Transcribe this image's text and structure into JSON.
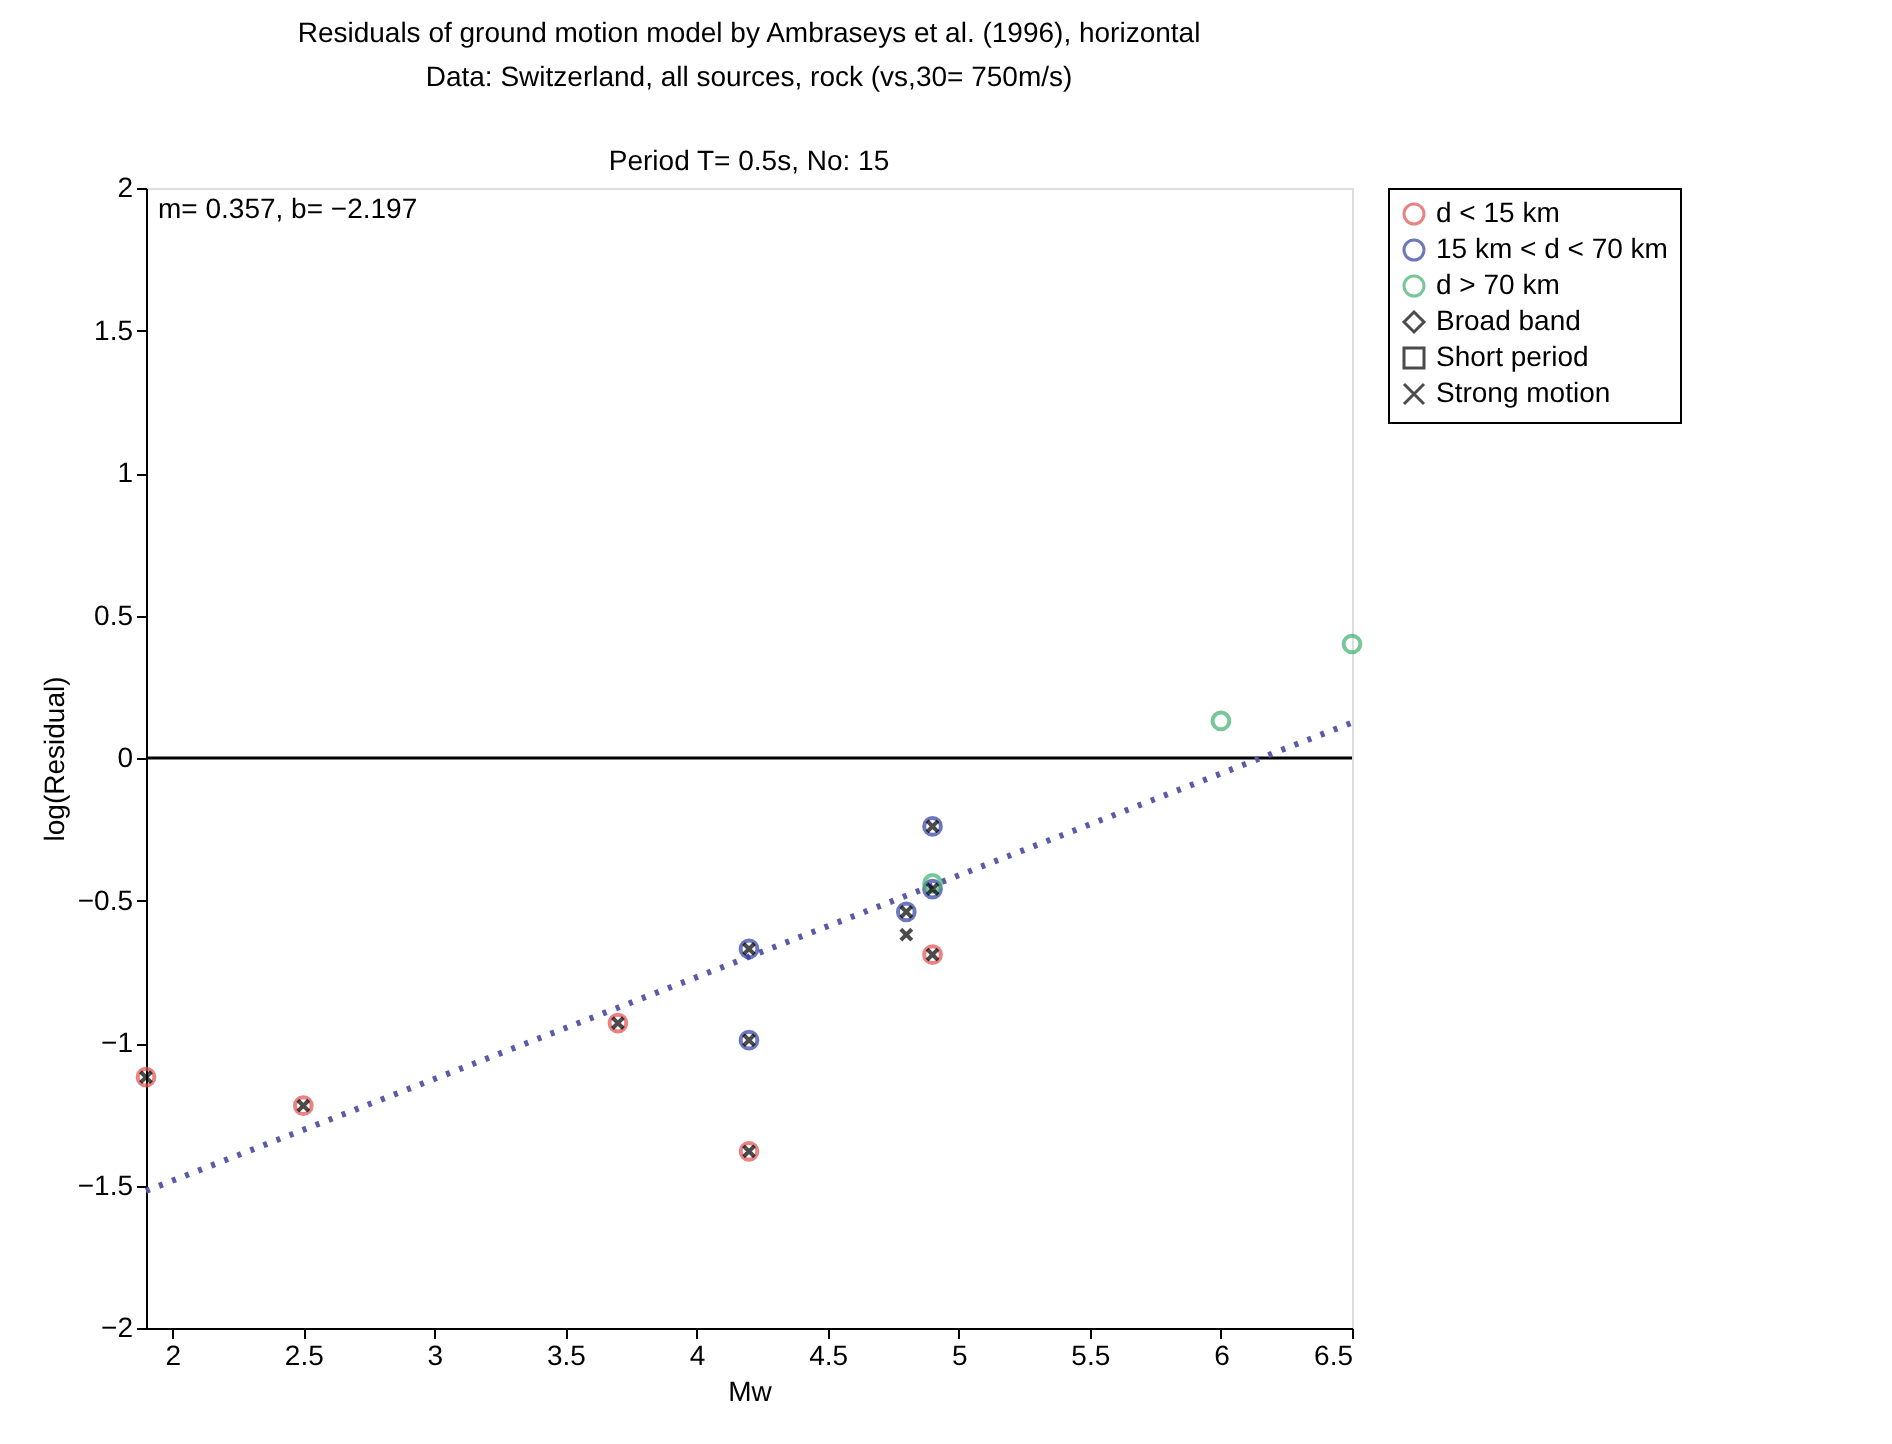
{
  "chart_data": {
    "type": "scatter",
    "title": "Residuals of ground motion model by Ambraseys et al. (1996), horizontal",
    "subtitle": "Data: Switzerland, all sources, rock (vs,30= 750m/s)",
    "annotations": [
      "m= 0.357, b= −2.197",
      "Period T= 0.5s, No: 15"
    ],
    "xlabel": "Mw",
    "ylabel": "log(Residual)",
    "series": [
      {
        "name": "d < 15 km",
        "color": "#e05050",
        "marker": "circle",
        "x": [
          1.9,
          2.5,
          3.7,
          4.2,
          4.9
        ],
        "values": [
          -1.12,
          -1.22,
          -0.93,
          -1.38,
          -0.69
        ]
      },
      {
        "name": "15 km < d < 70 km",
        "color": "#3040a0",
        "marker": "circle",
        "x": [
          4.2,
          4.2,
          4.8,
          4.9,
          4.9
        ],
        "values": [
          -0.67,
          -0.99,
          -0.54,
          -0.46,
          -0.24
        ]
      },
      {
        "name": "d > 70 km",
        "color": "#40b070",
        "marker": "circle",
        "x": [
          4.9,
          6.0,
          6.5
        ],
        "values": [
          -0.44,
          0.13,
          0.4
        ]
      },
      {
        "name": "Broad band",
        "color": "#000000",
        "marker": "diamond"
      },
      {
        "name": "Short period",
        "color": "#000000",
        "marker": "square"
      },
      {
        "name": "Strong motion",
        "color": "#000000",
        "marker": "cross",
        "x": [
          1.9,
          2.5,
          3.7,
          4.2,
          4.2,
          4.2,
          4.8,
          4.8,
          4.9,
          4.9,
          4.9
        ],
        "values": [
          -1.12,
          -1.22,
          -0.93,
          -0.67,
          -0.99,
          -1.38,
          -0.54,
          -0.62,
          -0.24,
          -0.46,
          -0.69
        ]
      },
      {
        "type": "line",
        "color": "#5a5aaa",
        "line_style": "dotted",
        "marker": "none",
        "x": [
          1.9,
          6.5
        ],
        "values": [
          -1.519,
          0.124
        ]
      }
    ],
    "ref_lines": [
      {
        "axis": "y",
        "value": 0,
        "color": "#000000",
        "line_style": "solid"
      }
    ],
    "xlim": [
      1.9,
      6.5
    ],
    "xticks": [
      2,
      2.5,
      3,
      3.5,
      4,
      4.5,
      5,
      5.5,
      6,
      6.5
    ],
    "ylim": [
      -2,
      2
    ],
    "yticks": [
      -2,
      -1.5,
      -1,
      -0.5,
      0,
      0.5,
      1,
      1.5,
      2
    ],
    "grid": false,
    "legend": "top right"
  }
}
